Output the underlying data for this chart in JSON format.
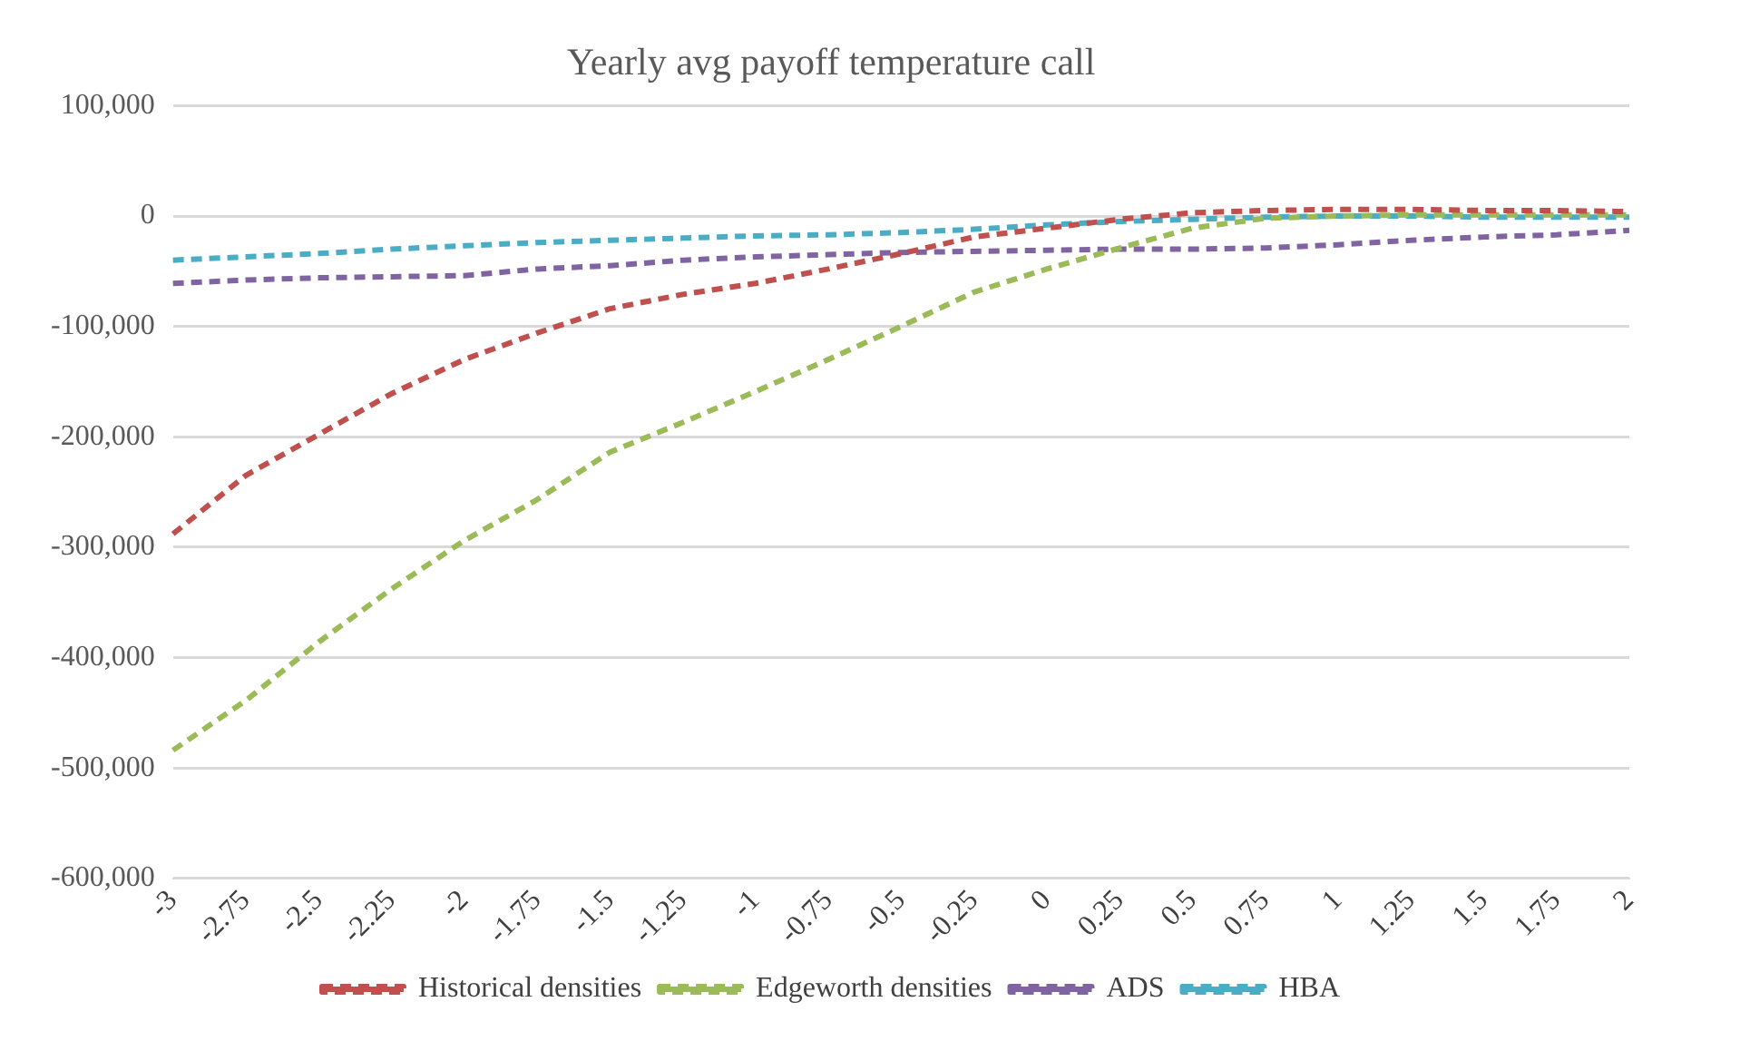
{
  "chart_data": {
    "type": "line",
    "title": "Yearly avg payoff temperature call",
    "categories": [
      "-3",
      "-2.75",
      "-2.5",
      "-2.25",
      "-2",
      "-1.75",
      "-1.5",
      "-1.25",
      "-1",
      "-0.75",
      "-0.5",
      "-0.25",
      "0",
      "0.25",
      "0.5",
      "0.75",
      "1",
      "1.25",
      "1.5",
      "1.75",
      "2"
    ],
    "series": [
      {
        "name": "Historical densities",
        "color": "#c0504d",
        "values": [
          -288000,
          -235000,
          -198000,
          -161000,
          -130000,
          -106000,
          -84000,
          -71000,
          -61000,
          -48000,
          -34000,
          -19000,
          -11000,
          -3000,
          3000,
          5000,
          6000,
          6000,
          5000,
          5000,
          4000
        ]
      },
      {
        "name": "Edgeworth densities",
        "color": "#9bbb59",
        "values": [
          -484000,
          -439000,
          -386000,
          -338000,
          -294000,
          -257000,
          -214000,
          -187000,
          -159000,
          -130000,
          -100000,
          -69000,
          -48000,
          -29000,
          -11000,
          -2000,
          0,
          1000,
          1000,
          1000,
          1000
        ]
      },
      {
        "name": "ADS",
        "color": "#8064a2",
        "values": [
          -61000,
          -58000,
          -56000,
          -55000,
          -54000,
          -48000,
          -45000,
          -40000,
          -37000,
          -35000,
          -33000,
          -32000,
          -31000,
          -30000,
          -30000,
          -29000,
          -26000,
          -22000,
          -19000,
          -17000,
          -13000
        ]
      },
      {
        "name": "HBA",
        "color": "#4bacc6",
        "values": [
          -40000,
          -37000,
          -34000,
          -30000,
          -27000,
          -24000,
          -22000,
          -20000,
          -18000,
          -17000,
          -15000,
          -12000,
          -8000,
          -5000,
          -3000,
          -1000,
          0,
          0,
          -1000,
          -1000,
          -1000
        ]
      }
    ],
    "ylim": [
      -600000,
      100000
    ],
    "yticks": [
      {
        "value": -600000,
        "label": "-600,000"
      },
      {
        "value": -500000,
        "label": "-500,000"
      },
      {
        "value": -400000,
        "label": "-400,000"
      },
      {
        "value": -300000,
        "label": "-300,000"
      },
      {
        "value": -200000,
        "label": "-200,000"
      },
      {
        "value": -100000,
        "label": "-100,000"
      },
      0,
      {
        "value": 100000,
        "label": "100,000"
      }
    ],
    "grid": "y",
    "legend": "bottom",
    "line_style": "dashed",
    "marker": "none"
  }
}
